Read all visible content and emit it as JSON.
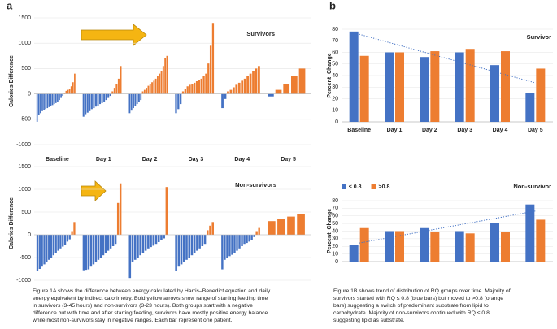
{
  "labels": [
    "a",
    "b"
  ],
  "captions": [
    [
      "Figure 1A shows the difference between energy calculated by Harris–Benedict equation and daily",
      "energy equivalent by indirect calorimetry. Bold yellow arrows show range of starting feeding time",
      "in survivors (3-45 hours) and non-survivors (3-23 hours). Both groups start with a negative",
      "difference but with time and after starting feeding, survivors have mostly positive energy balance",
      "while most non-survivors stay in negative ranges. Each bar represent one patient."
    ],
    [
      "Figure 1B shows trend of distribution of RQ groups over time. Majority of",
      "survivors started with RQ ≤ 0.8 (blue bars) but moved to >0.8 (orange",
      "bars) suggesting a switch of predominant substrate from lipid to",
      "carbohydrate. Majority of non-survivors continued with RQ ≤ 0.8",
      "suggesting lipid as substrate."
    ]
  ],
  "chart_data": [
    {
      "type": "bar",
      "title": "Survivors",
      "ylabel": "Calories Difference",
      "colors": {
        "negative": "#4472c4",
        "positive": "#ed7d31"
      },
      "ylim": [
        -1000,
        1500
      ],
      "yticks": [
        -1000,
        -500,
        0,
        500,
        1000,
        1500
      ],
      "grid": true,
      "groups": [
        {
          "name": "Baseline",
          "values": [
            -550,
            -420,
            -380,
            -340,
            -320,
            -300,
            -280,
            -260,
            -240,
            -220,
            -200,
            -180,
            -150,
            -120,
            -80,
            -40,
            20,
            60,
            80,
            100,
            150,
            230,
            400
          ]
        },
        {
          "name": "Day 1",
          "values": [
            -450,
            -400,
            -370,
            -340,
            -300,
            -280,
            -250,
            -230,
            -200,
            -180,
            -150,
            -120,
            -80,
            -40,
            50,
            120,
            200,
            300,
            550
          ]
        },
        {
          "name": "Day 2",
          "values": [
            -380,
            -330,
            -280,
            -240,
            -200,
            -160,
            -120,
            50,
            80,
            120,
            160,
            200,
            230,
            260,
            300,
            350,
            400,
            450,
            550,
            700,
            750
          ]
        },
        {
          "name": "Day 3",
          "values": [
            -380,
            -300,
            -200,
            50,
            100,
            150,
            180,
            200,
            220,
            250,
            280,
            300,
            350,
            400,
            600,
            950,
            1400
          ]
        },
        {
          "name": "Day 4",
          "values": [
            -280,
            -100,
            50,
            80,
            130,
            180,
            220,
            260,
            300,
            350,
            400,
            450,
            500,
            550
          ]
        },
        {
          "name": "Day 5",
          "values": [
            -50,
            80,
            200,
            350,
            500
          ]
        }
      ]
    },
    {
      "type": "bar",
      "title": "Non-survivors",
      "ylabel": "Calories Difference",
      "colors": {
        "negative": "#4472c4",
        "positive": "#ed7d31"
      },
      "ylim": [
        -1000,
        1500
      ],
      "yticks": [
        -1000,
        -500,
        0,
        500,
        1000,
        1500
      ],
      "grid": true,
      "groups": [
        {
          "values": [
            -800,
            -750,
            -700,
            -650,
            -600,
            -550,
            -500,
            -450,
            -400,
            -350,
            -300,
            -260,
            -220,
            -150,
            -100,
            80,
            280
          ]
        },
        {
          "values": [
            -780,
            -770,
            -760,
            -700,
            -650,
            -600,
            -550,
            -500,
            -450,
            -400,
            -350,
            -300,
            -250,
            -200,
            700,
            1130
          ]
        },
        {
          "values": [
            -950,
            -600,
            -550,
            -500,
            -450,
            -400,
            -350,
            -300,
            -270,
            -240,
            -200,
            -160,
            -120,
            -80,
            1050
          ]
        },
        {
          "values": [
            -800,
            -700,
            -650,
            -600,
            -550,
            -500,
            -450,
            -400,
            -350,
            -300,
            -250,
            -200,
            100,
            200,
            280
          ]
        },
        {
          "values": [
            -760,
            -550,
            -500,
            -470,
            -440,
            -400,
            -350,
            -300,
            -250,
            -200,
            -180,
            -150,
            -120,
            -50,
            80,
            150
          ]
        },
        {
          "values": [
            300,
            350,
            400,
            450
          ]
        }
      ]
    },
    {
      "type": "grouped_bar",
      "title": "Survivor",
      "ylabel": "Percent  Change",
      "categories": [
        "Baseline",
        "Day 1",
        "Day 2",
        "Day 3",
        "Day 4",
        "Day 5"
      ],
      "series": [
        {
          "color": "#4472c4",
          "values": [
            78,
            60,
            56,
            60,
            49,
            25
          ]
        },
        {
          "color": "#ed7d31",
          "values": [
            57,
            60,
            61,
            63,
            61,
            46
          ]
        }
      ],
      "trendline": "dotted",
      "ylim": [
        0,
        80
      ],
      "yticks": [
        0,
        10,
        20,
        30,
        40,
        50,
        60,
        70,
        80
      ],
      "grid": true
    },
    {
      "type": "grouped_bar",
      "title": "Non-survivor",
      "ylabel": "Percent  Change",
      "categories": [
        null,
        null,
        null,
        null,
        null,
        null
      ],
      "series": [
        {
          "name": "≤ 0.8",
          "color": "#4472c4",
          "values": [
            22,
            40,
            44,
            40,
            51,
            75
          ]
        },
        {
          "name": ">0.8",
          "color": "#ed7d31",
          "values": [
            44,
            40,
            39,
            37,
            39,
            55
          ]
        }
      ],
      "trendline": "dotted",
      "legend": "top-left",
      "ylim": [
        0,
        80
      ],
      "yticks": [
        0,
        10,
        20,
        30,
        40,
        50,
        60,
        70,
        80
      ],
      "grid": true
    }
  ]
}
